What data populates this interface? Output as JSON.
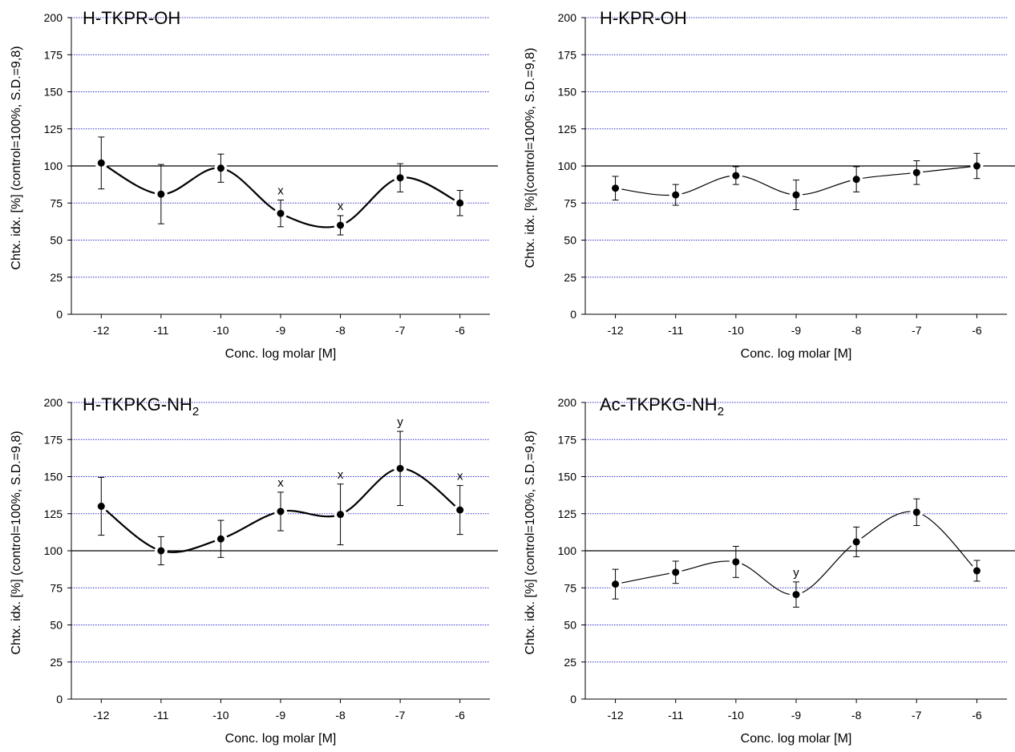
{
  "chart_data": [
    {
      "type": "line",
      "title": "H-TKPR-OH",
      "xlabel": "Conc. log molar [M]",
      "ylabel": "Chtx. idx. [%] (control=100%, S.D.=9,8)",
      "x_ticks": [
        "-12",
        "-11",
        "-10",
        "-9",
        "-8",
        "-7",
        "-6"
      ],
      "y_ticks": [
        "0",
        "25",
        "50",
        "75",
        "100",
        "125",
        "150",
        "175",
        "200"
      ],
      "xlim": [
        -12.5,
        -5.5
      ],
      "ylim": [
        0,
        200
      ],
      "grid": true,
      "reference_line": 100,
      "colors": {
        "grid": "#3333cc",
        "series": "#000000"
      },
      "series": [
        {
          "x": [
            -12,
            -11,
            -10,
            -9,
            -8,
            -7,
            -6
          ],
          "y": [
            102,
            81,
            98.5,
            68,
            60,
            92,
            75
          ],
          "err": [
            17.5,
            20,
            9.5,
            9,
            6.5,
            9.5,
            8.5
          ],
          "annotations": [
            "",
            "",
            "",
            "x",
            "x",
            "",
            ""
          ]
        }
      ]
    },
    {
      "type": "line",
      "title": "H-KPR-OH",
      "xlabel": "Conc. log molar [M]",
      "ylabel": "Chtx. idx. [%](control=100%, S.D.=9,8)",
      "x_ticks": [
        "-12",
        "-11",
        "-10",
        "-9",
        "-8",
        "-7",
        "-6"
      ],
      "y_ticks": [
        "0",
        "25",
        "50",
        "75",
        "100",
        "125",
        "150",
        "175",
        "200"
      ],
      "xlim": [
        -12.5,
        -5.5
      ],
      "ylim": [
        0,
        200
      ],
      "grid": true,
      "reference_line": 100,
      "colors": {
        "grid": "#3333cc",
        "series": "#000000"
      },
      "series": [
        {
          "x": [
            -12,
            -11,
            -10,
            -9,
            -8,
            -7,
            -6
          ],
          "y": [
            85,
            80.5,
            93.5,
            80.5,
            91,
            95.5,
            100
          ],
          "err": [
            8,
            7,
            6,
            10,
            8.5,
            8,
            8.5
          ],
          "annotations": [
            "",
            "",
            "",
            "",
            "",
            "",
            ""
          ]
        }
      ]
    },
    {
      "type": "line",
      "title": "H-TKPKG-NH",
      "title_subscript": "2",
      "xlabel": "Conc. log molar [M]",
      "ylabel": "Chtx. idx. [%] (control=100%, S.D.=9,8)",
      "x_ticks": [
        "-12",
        "-11",
        "-10",
        "-9",
        "-8",
        "-7",
        "-6"
      ],
      "y_ticks": [
        "0",
        "25",
        "50",
        "75",
        "100",
        "125",
        "150",
        "175",
        "200"
      ],
      "xlim": [
        -12.5,
        -5.5
      ],
      "ylim": [
        0,
        200
      ],
      "grid": true,
      "reference_line": 100,
      "colors": {
        "grid": "#3333cc",
        "series": "#000000"
      },
      "series": [
        {
          "x": [
            -12,
            -11,
            -10,
            -9,
            -8,
            -7,
            -6
          ],
          "y": [
            130,
            100,
            108,
            126.5,
            124.5,
            155.5,
            127.5
          ],
          "err": [
            19.5,
            9.5,
            12.5,
            13,
            20.5,
            25,
            16.5
          ],
          "annotations": [
            "",
            "",
            "",
            "x",
            "x",
            "y",
            "x"
          ]
        }
      ]
    },
    {
      "type": "line",
      "title": "Ac-TKPKG-NH",
      "title_subscript": "2",
      "xlabel": "Conc. log molar [M]",
      "ylabel": "Chtx. idx. [%] (control=100%, S.D.=9,8)",
      "x_ticks": [
        "-12",
        "-11",
        "-10",
        "-9",
        "-8",
        "-7",
        "-6"
      ],
      "y_ticks": [
        "0",
        "25",
        "50",
        "75",
        "100",
        "125",
        "150",
        "175",
        "200"
      ],
      "xlim": [
        -12.5,
        -5.5
      ],
      "ylim": [
        0,
        200
      ],
      "grid": true,
      "reference_line": 100,
      "colors": {
        "grid": "#3333cc",
        "series": "#000000"
      },
      "series": [
        {
          "x": [
            -12,
            -11,
            -10,
            -9,
            -8,
            -7,
            -6
          ],
          "y": [
            77.5,
            85.5,
            92.5,
            70.5,
            106,
            126,
            86.5
          ],
          "err": [
            10,
            7.5,
            10.5,
            8.5,
            10,
            9,
            7
          ],
          "annotations": [
            "",
            "",
            "",
            "y",
            "",
            "",
            ""
          ]
        }
      ]
    }
  ]
}
